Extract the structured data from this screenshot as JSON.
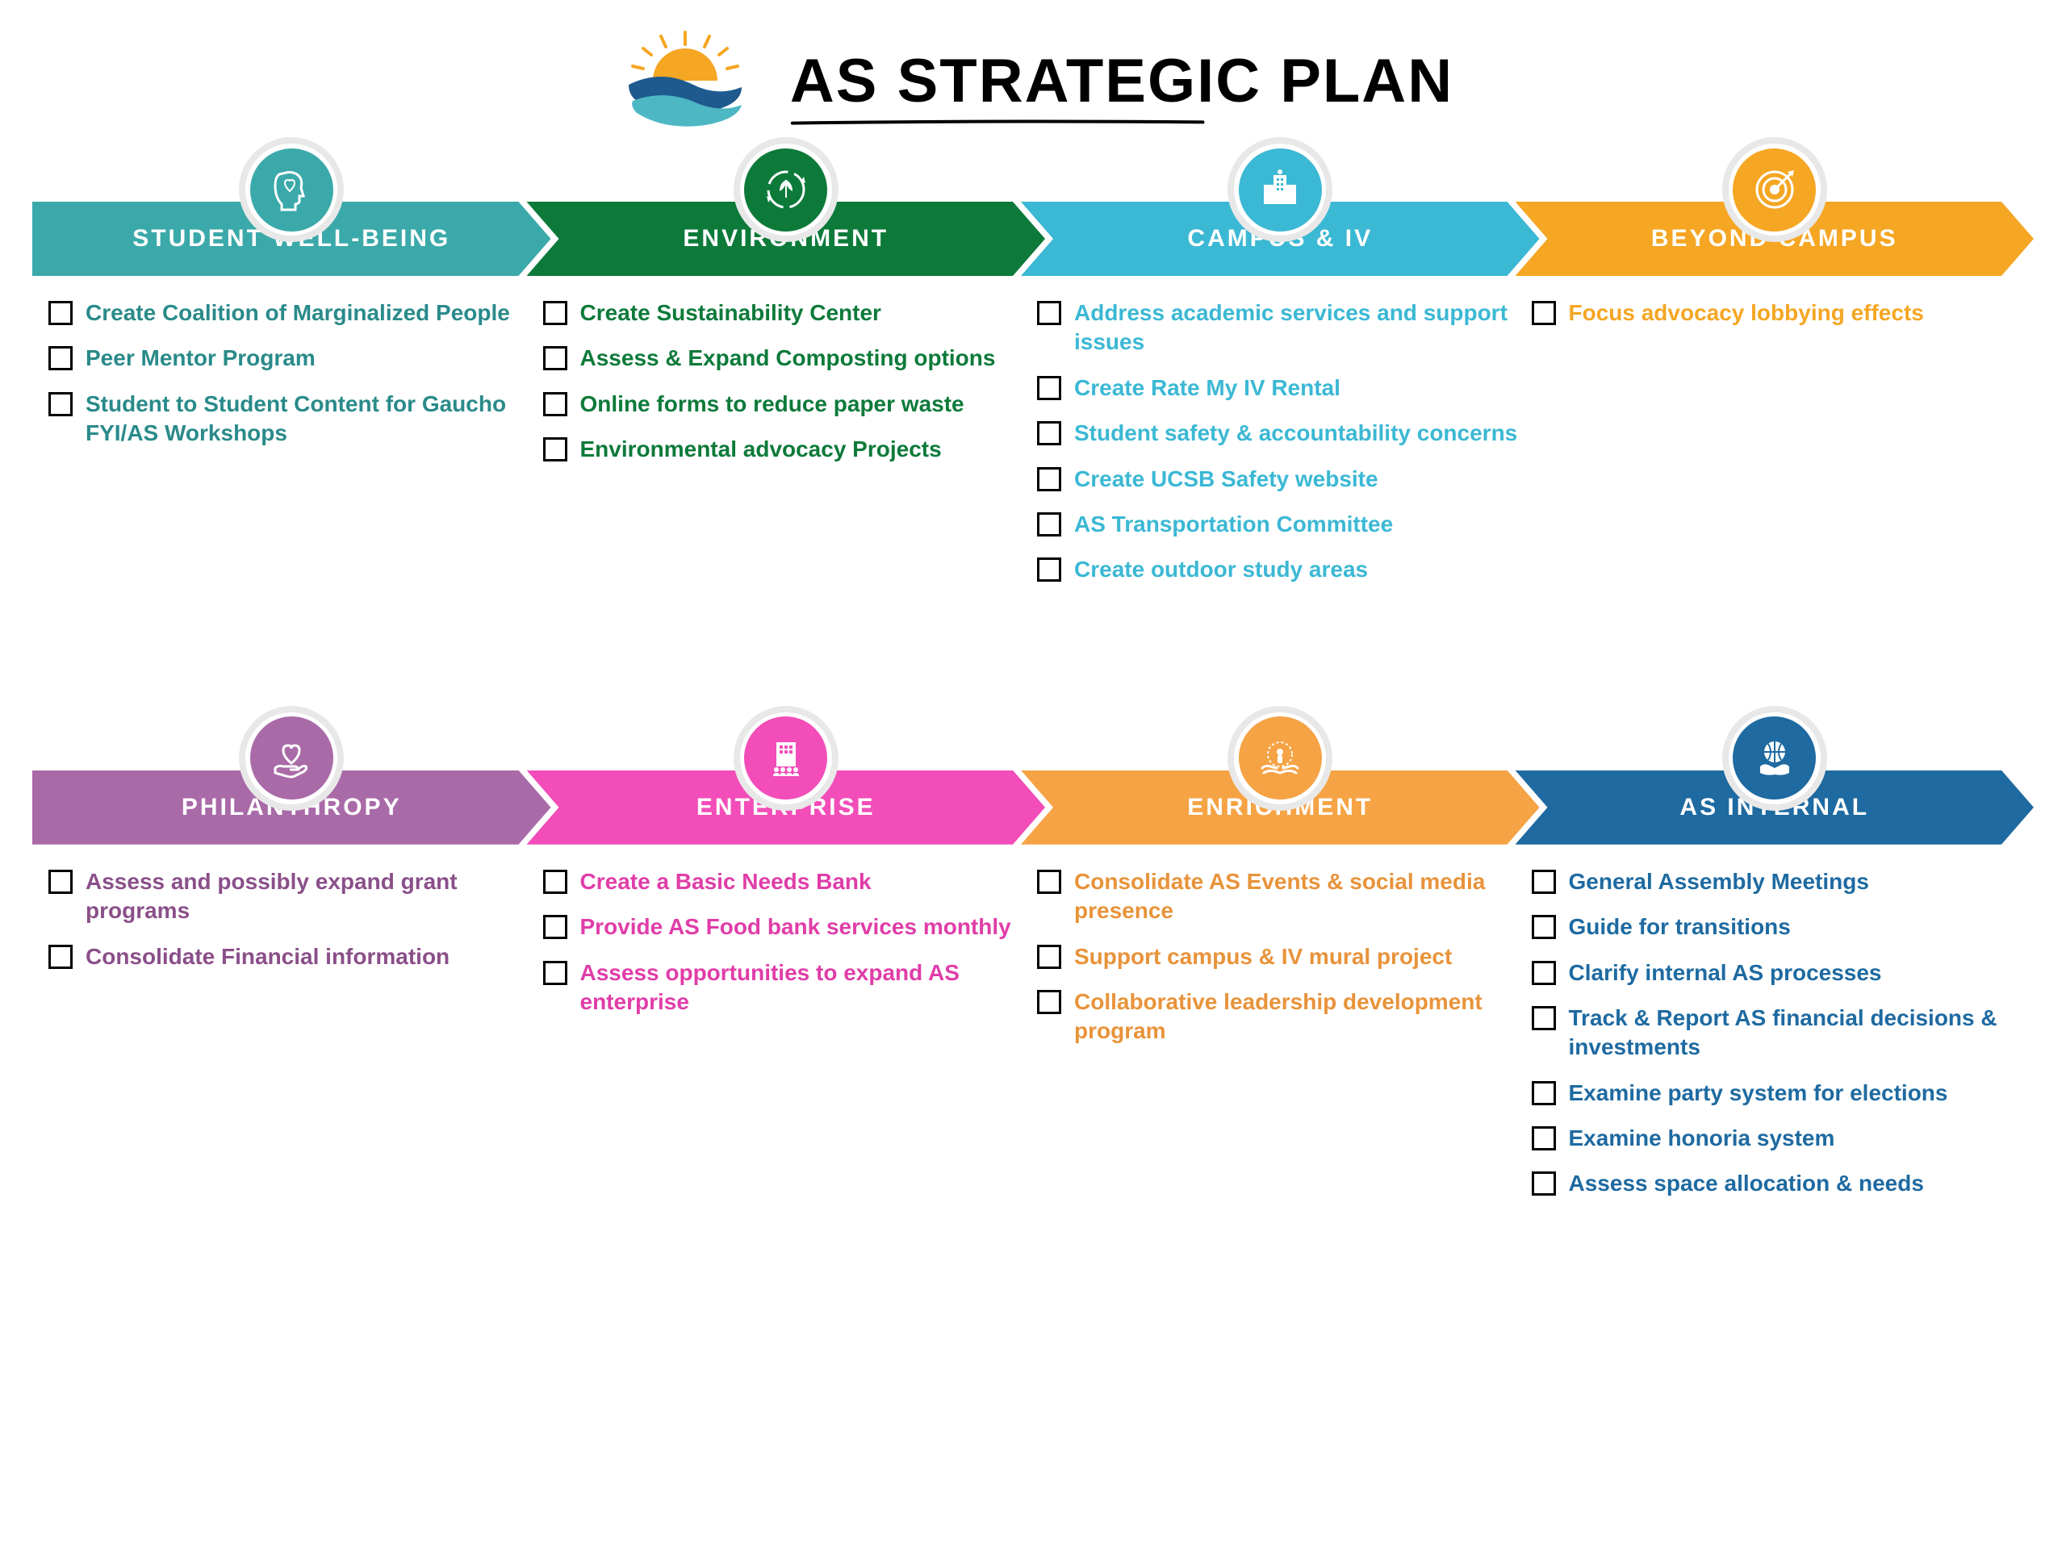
{
  "title": "AS STRATEGIC PLAN",
  "title_color": "#000000",
  "title_fontsize": 76,
  "background_color": "#ffffff",
  "logo": {
    "sun_color": "#f5a623",
    "wave_blue": "#1e5a8e",
    "wave_teal": "#4db8c4"
  },
  "rows": [
    {
      "pillars": [
        {
          "label": "STUDENT WELL-BEING",
          "color": "#3ba9a9",
          "icon_name": "head-heart-icon",
          "text_color": "#2a8a8a",
          "items": [
            "Create Coalition of Marginalized People",
            "Peer Mentor Program",
            "Student to Student Content for Gaucho FYI/AS Workshops"
          ]
        },
        {
          "label": "ENVIRONMENT",
          "color": "#0d7a3a",
          "icon_name": "leaf-cycle-icon",
          "text_color": "#0d7a3a",
          "items": [
            "Create Sustainability Center",
            "Assess & Expand Composting options",
            "Online forms to reduce paper waste",
            "Environmental advocacy Projects"
          ]
        },
        {
          "label": "CAMPUS & IV",
          "color": "#3bb8d4",
          "icon_name": "building-icon",
          "text_color": "#3bb8d4",
          "items": [
            "Address academic services and support issues",
            "Create Rate My IV Rental",
            "Student safety & accountability concerns",
            "Create UCSB Safety website",
            "AS Transportation Committee",
            "Create outdoor study areas"
          ]
        },
        {
          "label": "BEYOND CAMPUS",
          "color": "#f5a623",
          "icon_name": "target-icon",
          "text_color": "#f5a623",
          "items": [
            "Focus advocacy lobbying effects"
          ]
        }
      ]
    },
    {
      "pillars": [
        {
          "label": "PHILANTHROPY",
          "color": "#a96aa8",
          "icon_name": "hand-heart-icon",
          "text_color": "#8a4f89",
          "items": [
            "Assess and possibly expand grant programs",
            "Consolidate Financial information"
          ]
        },
        {
          "label": "ENTERPRISE",
          "color": "#f24db8",
          "icon_name": "building-people-icon",
          "text_color": "#e03da8",
          "items": [
            "Create a Basic Needs Bank",
            "Provide AS Food bank services monthly",
            "Assess opportunities to expand AS enterprise"
          ]
        },
        {
          "label": "ENRICHMENT",
          "color": "#f5a344",
          "icon_name": "hands-person-icon",
          "text_color": "#e8933a",
          "items": [
            "Consolidate AS Events & social media presence",
            "Support campus & IV mural project",
            "Collaborative leadership development program"
          ]
        },
        {
          "label": "AS INTERNAL",
          "color": "#1e6aa1",
          "icon_name": "globe-hands-icon",
          "text_color": "#1e6aa1",
          "items": [
            "General Assembly Meetings",
            "Guide for transitions",
            "Clarify internal AS processes",
            "Track & Report AS financial decisions & investments",
            "Examine party system for elections",
            "Examine honoria system",
            "Assess space allocation & needs"
          ]
        }
      ]
    }
  ]
}
